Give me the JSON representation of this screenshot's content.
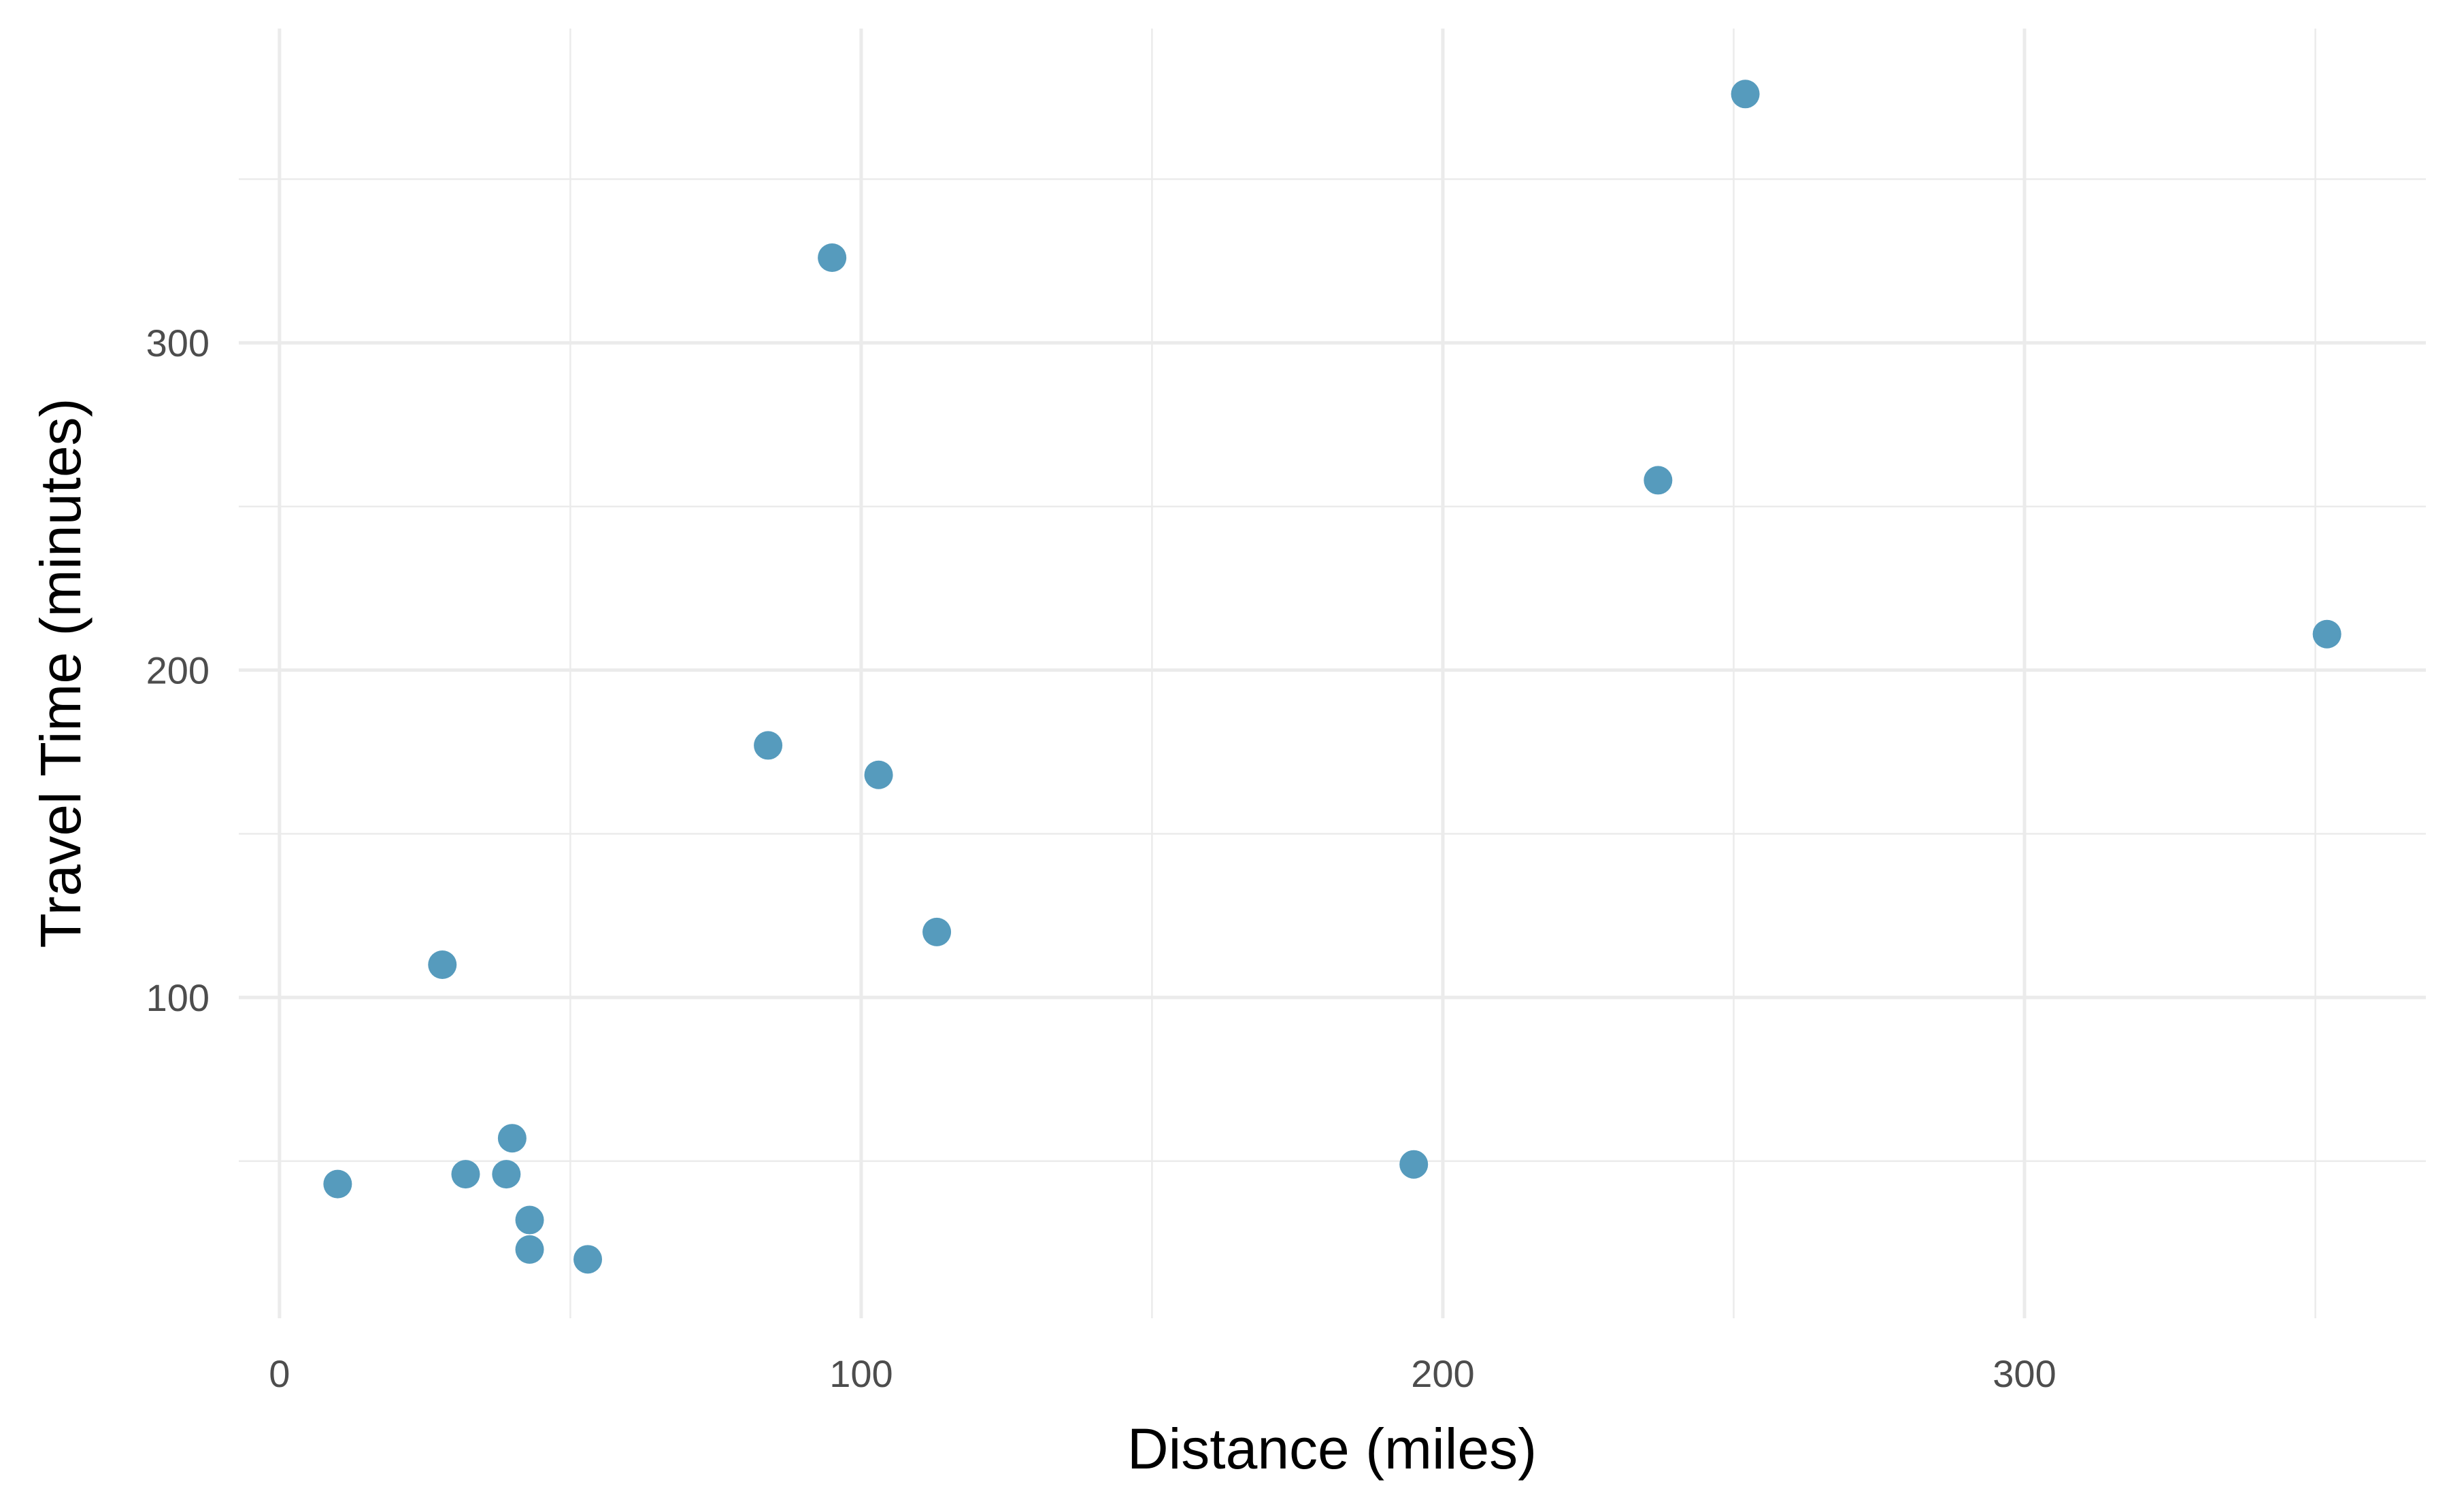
{
  "chart_data": {
    "type": "scatter",
    "title": "",
    "xlabel": "Distance (miles)",
    "ylabel": "Travel Time (minutes)",
    "xlim": [
      -7,
      369
    ],
    "ylim": [
      2,
      396
    ],
    "x_ticks": [
      0,
      100,
      200,
      300
    ],
    "x_tick_labels": [
      "0",
      "100",
      "200",
      "300"
    ],
    "x_minor": [
      50,
      150,
      250,
      350
    ],
    "y_ticks": [
      100,
      200,
      300
    ],
    "y_tick_labels": [
      "100",
      "200",
      "300"
    ],
    "y_minor": [
      50,
      150,
      250,
      350
    ],
    "grid": true,
    "point_color": "#569BBD",
    "points": [
      {
        "x": 252,
        "y": 376
      },
      {
        "x": 95,
        "y": 326
      },
      {
        "x": 237,
        "y": 258
      },
      {
        "x": 352,
        "y": 211
      },
      {
        "x": 84,
        "y": 177
      },
      {
        "x": 103,
        "y": 168
      },
      {
        "x": 113,
        "y": 120
      },
      {
        "x": 28,
        "y": 110
      },
      {
        "x": 195,
        "y": 49
      },
      {
        "x": 40,
        "y": 57
      },
      {
        "x": 10,
        "y": 43
      },
      {
        "x": 32,
        "y": 46
      },
      {
        "x": 39,
        "y": 46
      },
      {
        "x": 43,
        "y": 32
      },
      {
        "x": 43,
        "y": 23
      },
      {
        "x": 53,
        "y": 20
      }
    ]
  }
}
